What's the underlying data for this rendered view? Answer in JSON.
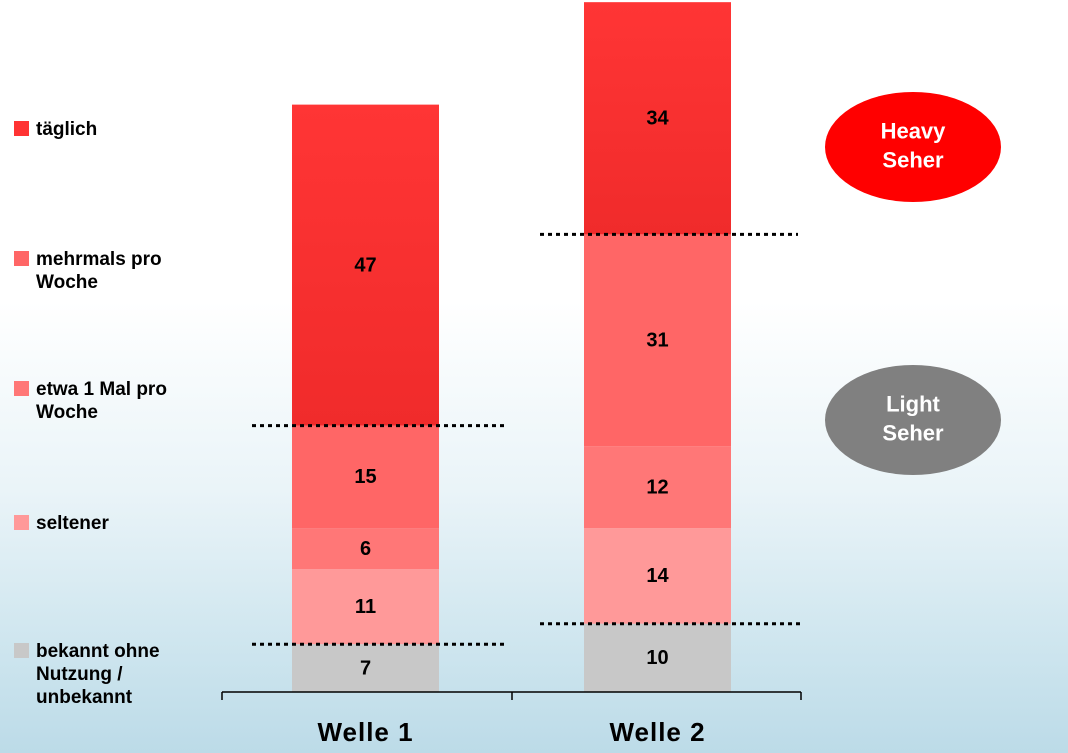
{
  "chart_data": {
    "type": "bar",
    "stacked": true,
    "categories": [
      "Welle 1",
      "Welle 2"
    ],
    "series": [
      {
        "name": "täglich",
        "color": "#ff3333",
        "values": [
          47,
          34
        ]
      },
      {
        "name": "mehrmals pro\nWoche",
        "color": "#ff6666",
        "values": [
          15,
          31
        ]
      },
      {
        "name": "etwa 1 Mal pro\nWoche",
        "color": "#ff7777",
        "values": [
          6,
          12
        ]
      },
      {
        "name": "seltener",
        "color": "#ff9999",
        "values": [
          11,
          14
        ]
      },
      {
        "name": "bekannt ohne\nNutzung /\nunbekannt",
        "color": "#c8c8c8",
        "values": [
          7,
          10
        ]
      }
    ],
    "segments_order_bottom_to_top": [
      "bekannt ohne Nutzung / unbekannt",
      "seltener",
      "etwa 1 Mal pro Woche",
      "mehrmals pro Woche",
      "täglich"
    ],
    "annotations": [
      {
        "text": "Heavy\nSeher",
        "fill": "#ff0000",
        "text_color": "#ffffff"
      },
      {
        "text": "Light\nSeher",
        "fill": "#808080",
        "text_color": "#ffffff"
      }
    ]
  }
}
